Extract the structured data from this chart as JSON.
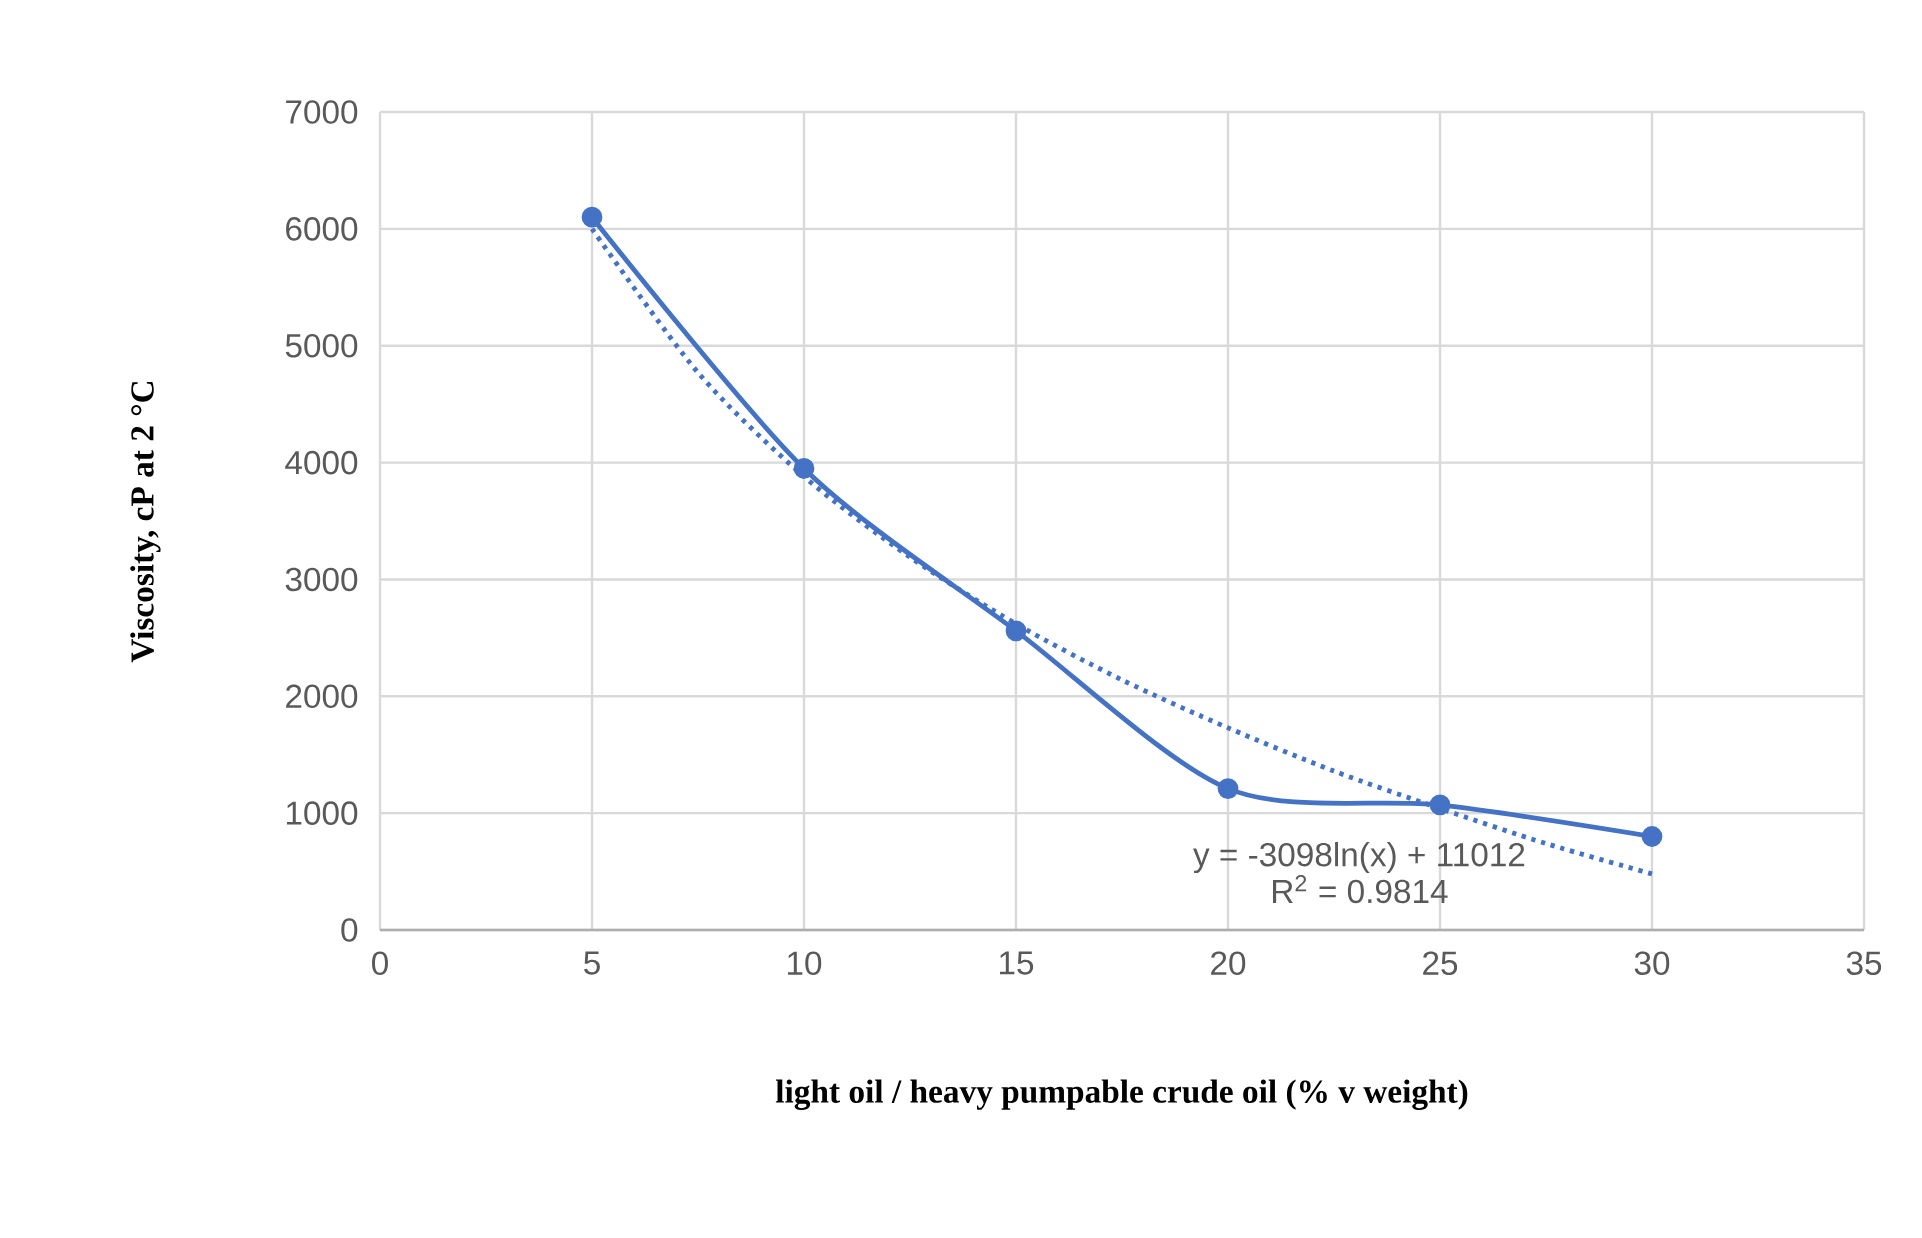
{
  "chart_data": {
    "type": "line",
    "xlabel": "light oil / heavy pumpable crude oil (% v weight)",
    "ylabel": "Viscosity, cP at 2 °C",
    "xlim": [
      0,
      35
    ],
    "ylim": [
      0,
      7000
    ],
    "xticks": [
      0,
      5,
      10,
      15,
      20,
      25,
      30,
      35
    ],
    "yticks": [
      0,
      1000,
      2000,
      3000,
      4000,
      5000,
      6000,
      7000
    ],
    "grid": true,
    "series": [
      {
        "color": "#4472c4",
        "marker": "circle",
        "line_style": "solid",
        "x": [
          5,
          10,
          15,
          20,
          25,
          30
        ],
        "values": [
          6100,
          3950,
          2560,
          1210,
          1070,
          800
        ]
      },
      {
        "color": "#4472c4",
        "marker": "none",
        "line_style": "dotted",
        "x": [
          5,
          7.5,
          10,
          12.5,
          15,
          17.5,
          20,
          22.5,
          25,
          27.5,
          30
        ],
        "values": [
          6000,
          4770,
          3880,
          3190,
          2620,
          2140,
          1730,
          1360,
          1040,
          740,
          480
        ]
      }
    ],
    "annotations": [
      "y = -3098ln(x) + 11012",
      "R$^{2}$ = 0.9814"
    ]
  }
}
